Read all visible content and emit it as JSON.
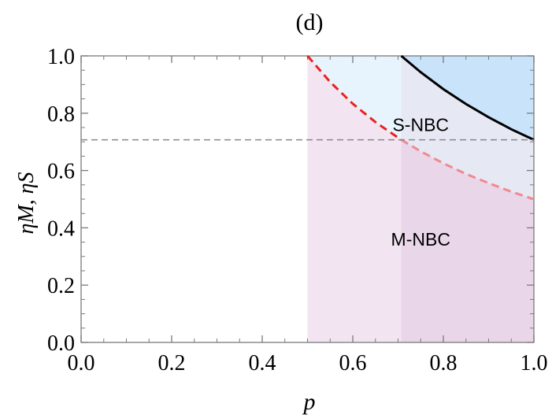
{
  "chart_data": {
    "type": "line",
    "title": "(d)",
    "xlabel": "p",
    "ylabel": "ηM, ηS",
    "xlim": [
      0.0,
      1.0
    ],
    "ylim": [
      0.0,
      1.0
    ],
    "xticks": [
      "0.0",
      "0.2",
      "0.4",
      "0.6",
      "0.8",
      "1.0"
    ],
    "yticks": [
      "0.0",
      "0.2",
      "0.4",
      "0.6",
      "0.8",
      "1.0"
    ],
    "grid": false,
    "series": [
      {
        "style": "dashed",
        "color": "#e8231f",
        "x": [
          0.5,
          0.55,
          0.6,
          0.65,
          0.7071
        ],
        "y": [
          1.0,
          0.909,
          0.833,
          0.769,
          0.7071
        ]
      },
      {
        "style": "dashed",
        "color": "#f0898e",
        "x": [
          0.7071,
          0.75,
          0.8,
          0.85,
          0.9,
          0.95,
          1.0
        ],
        "y": [
          0.7071,
          0.667,
          0.625,
          0.588,
          0.556,
          0.526,
          0.5
        ]
      },
      {
        "style": "solid",
        "color": "#000000",
        "x": [
          0.7071,
          0.75,
          0.8,
          0.85,
          0.9,
          0.95,
          1.0
        ],
        "y": [
          1.0,
          0.943,
          0.884,
          0.832,
          0.786,
          0.744,
          0.7071
        ]
      },
      {
        "style": "dashed",
        "color": "#888888",
        "x": [
          0.0,
          1.0
        ],
        "y": [
          0.7071,
          0.7071
        ]
      }
    ],
    "regions": [
      {
        "label": "S-NBC",
        "label_at": [
          0.75,
          0.76
        ],
        "color": "#cde6fb"
      },
      {
        "label": "M-NBC",
        "label_at": [
          0.75,
          0.36
        ],
        "color": "#eedcec"
      }
    ]
  }
}
